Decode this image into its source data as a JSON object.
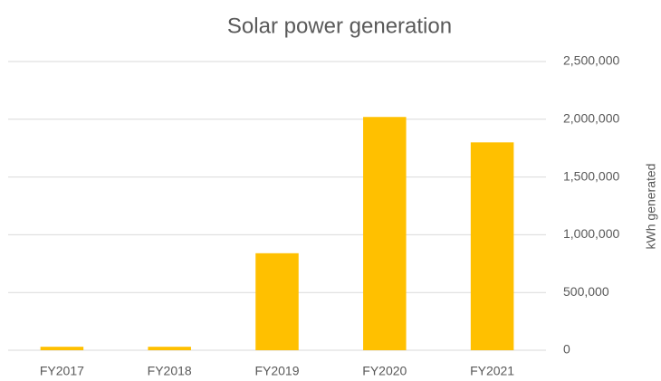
{
  "chart_data": {
    "type": "bar",
    "title": "Solar power generation",
    "categories": [
      "FY2017",
      "FY2018",
      "FY2019",
      "FY2020",
      "FY2021"
    ],
    "values": [
      30000,
      30000,
      840000,
      2020000,
      1800000
    ],
    "color": "#ffc000",
    "y_axis_label": "kWh generated",
    "y_axis_side": "right",
    "ylim": [
      0,
      2500000
    ],
    "yticks": [
      0,
      {
        "value": 500000,
        "label": "500,000"
      },
      {
        "value": 1000000,
        "label": "1,000,000"
      },
      {
        "value": 1500000,
        "label": "1,500,000"
      },
      {
        "value": 2000000,
        "label": "2,000,000"
      },
      {
        "value": 2500000,
        "label": "2,500,000"
      }
    ],
    "grid": true
  }
}
